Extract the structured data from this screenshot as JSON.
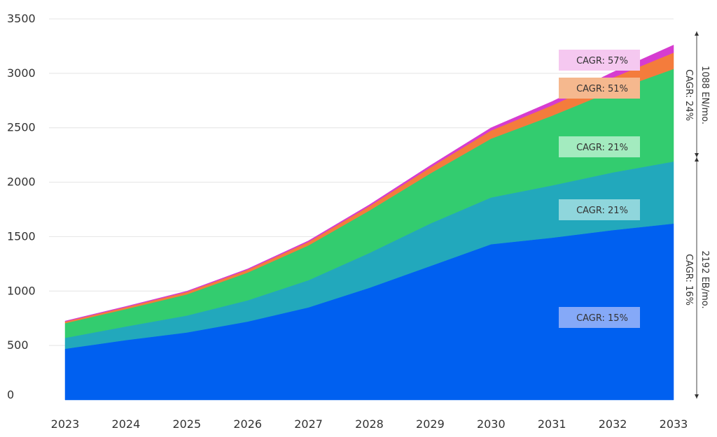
{
  "chart_data": {
    "type": "area",
    "stacked": true,
    "x": [
      "2023",
      "2024",
      "2025",
      "2026",
      "2027",
      "2028",
      "2029",
      "2030",
      "2031",
      "2032",
      "2033"
    ],
    "ylim": [
      0,
      3500
    ],
    "yticks": [
      0,
      500,
      1000,
      1500,
      2000,
      2500,
      3000,
      3500
    ],
    "grid": true,
    "series": [
      {
        "values": [
          470,
          550,
          620,
          720,
          850,
          1030,
          1230,
          1430,
          1490,
          1560,
          1620
        ],
        "color": "#0060f0"
      },
      {
        "values": [
          100,
          125,
          155,
          195,
          250,
          320,
          390,
          430,
          480,
          530,
          570
        ],
        "color": "#22a8bc"
      },
      {
        "values": [
          135,
          160,
          195,
          255,
          320,
          390,
          460,
          540,
          640,
          750,
          850
        ],
        "color": "#33cc6f"
      },
      {
        "values": [
          15,
          18,
          22,
          26,
          32,
          40,
          55,
          75,
          95,
          120,
          150
        ],
        "color": "#f47c3c"
      },
      {
        "values": [
          5,
          6,
          7,
          8,
          10,
          13,
          18,
          25,
          35,
          50,
          70
        ],
        "color": "#d63cd0"
      }
    ],
    "annotations": [
      {
        "text": "CAGR: 57%",
        "color": "#f5c8f0"
      },
      {
        "text": "CAGR: 51%",
        "color": "#f5b88e"
      },
      {
        "text": "CAGR: 21%",
        "color": "#a3ebbf"
      },
      {
        "text": "CAGR: 21%",
        "color": "#8fd6dc"
      },
      {
        "text": "CAGR: 15%",
        "color": "#85a9f8"
      }
    ],
    "brackets": [
      {
        "value": "1088 EN/mo.",
        "cagr": "CAGR: 24%"
      },
      {
        "value": "2192 EB/mo.",
        "cagr": "CAGR: 16%"
      }
    ]
  }
}
